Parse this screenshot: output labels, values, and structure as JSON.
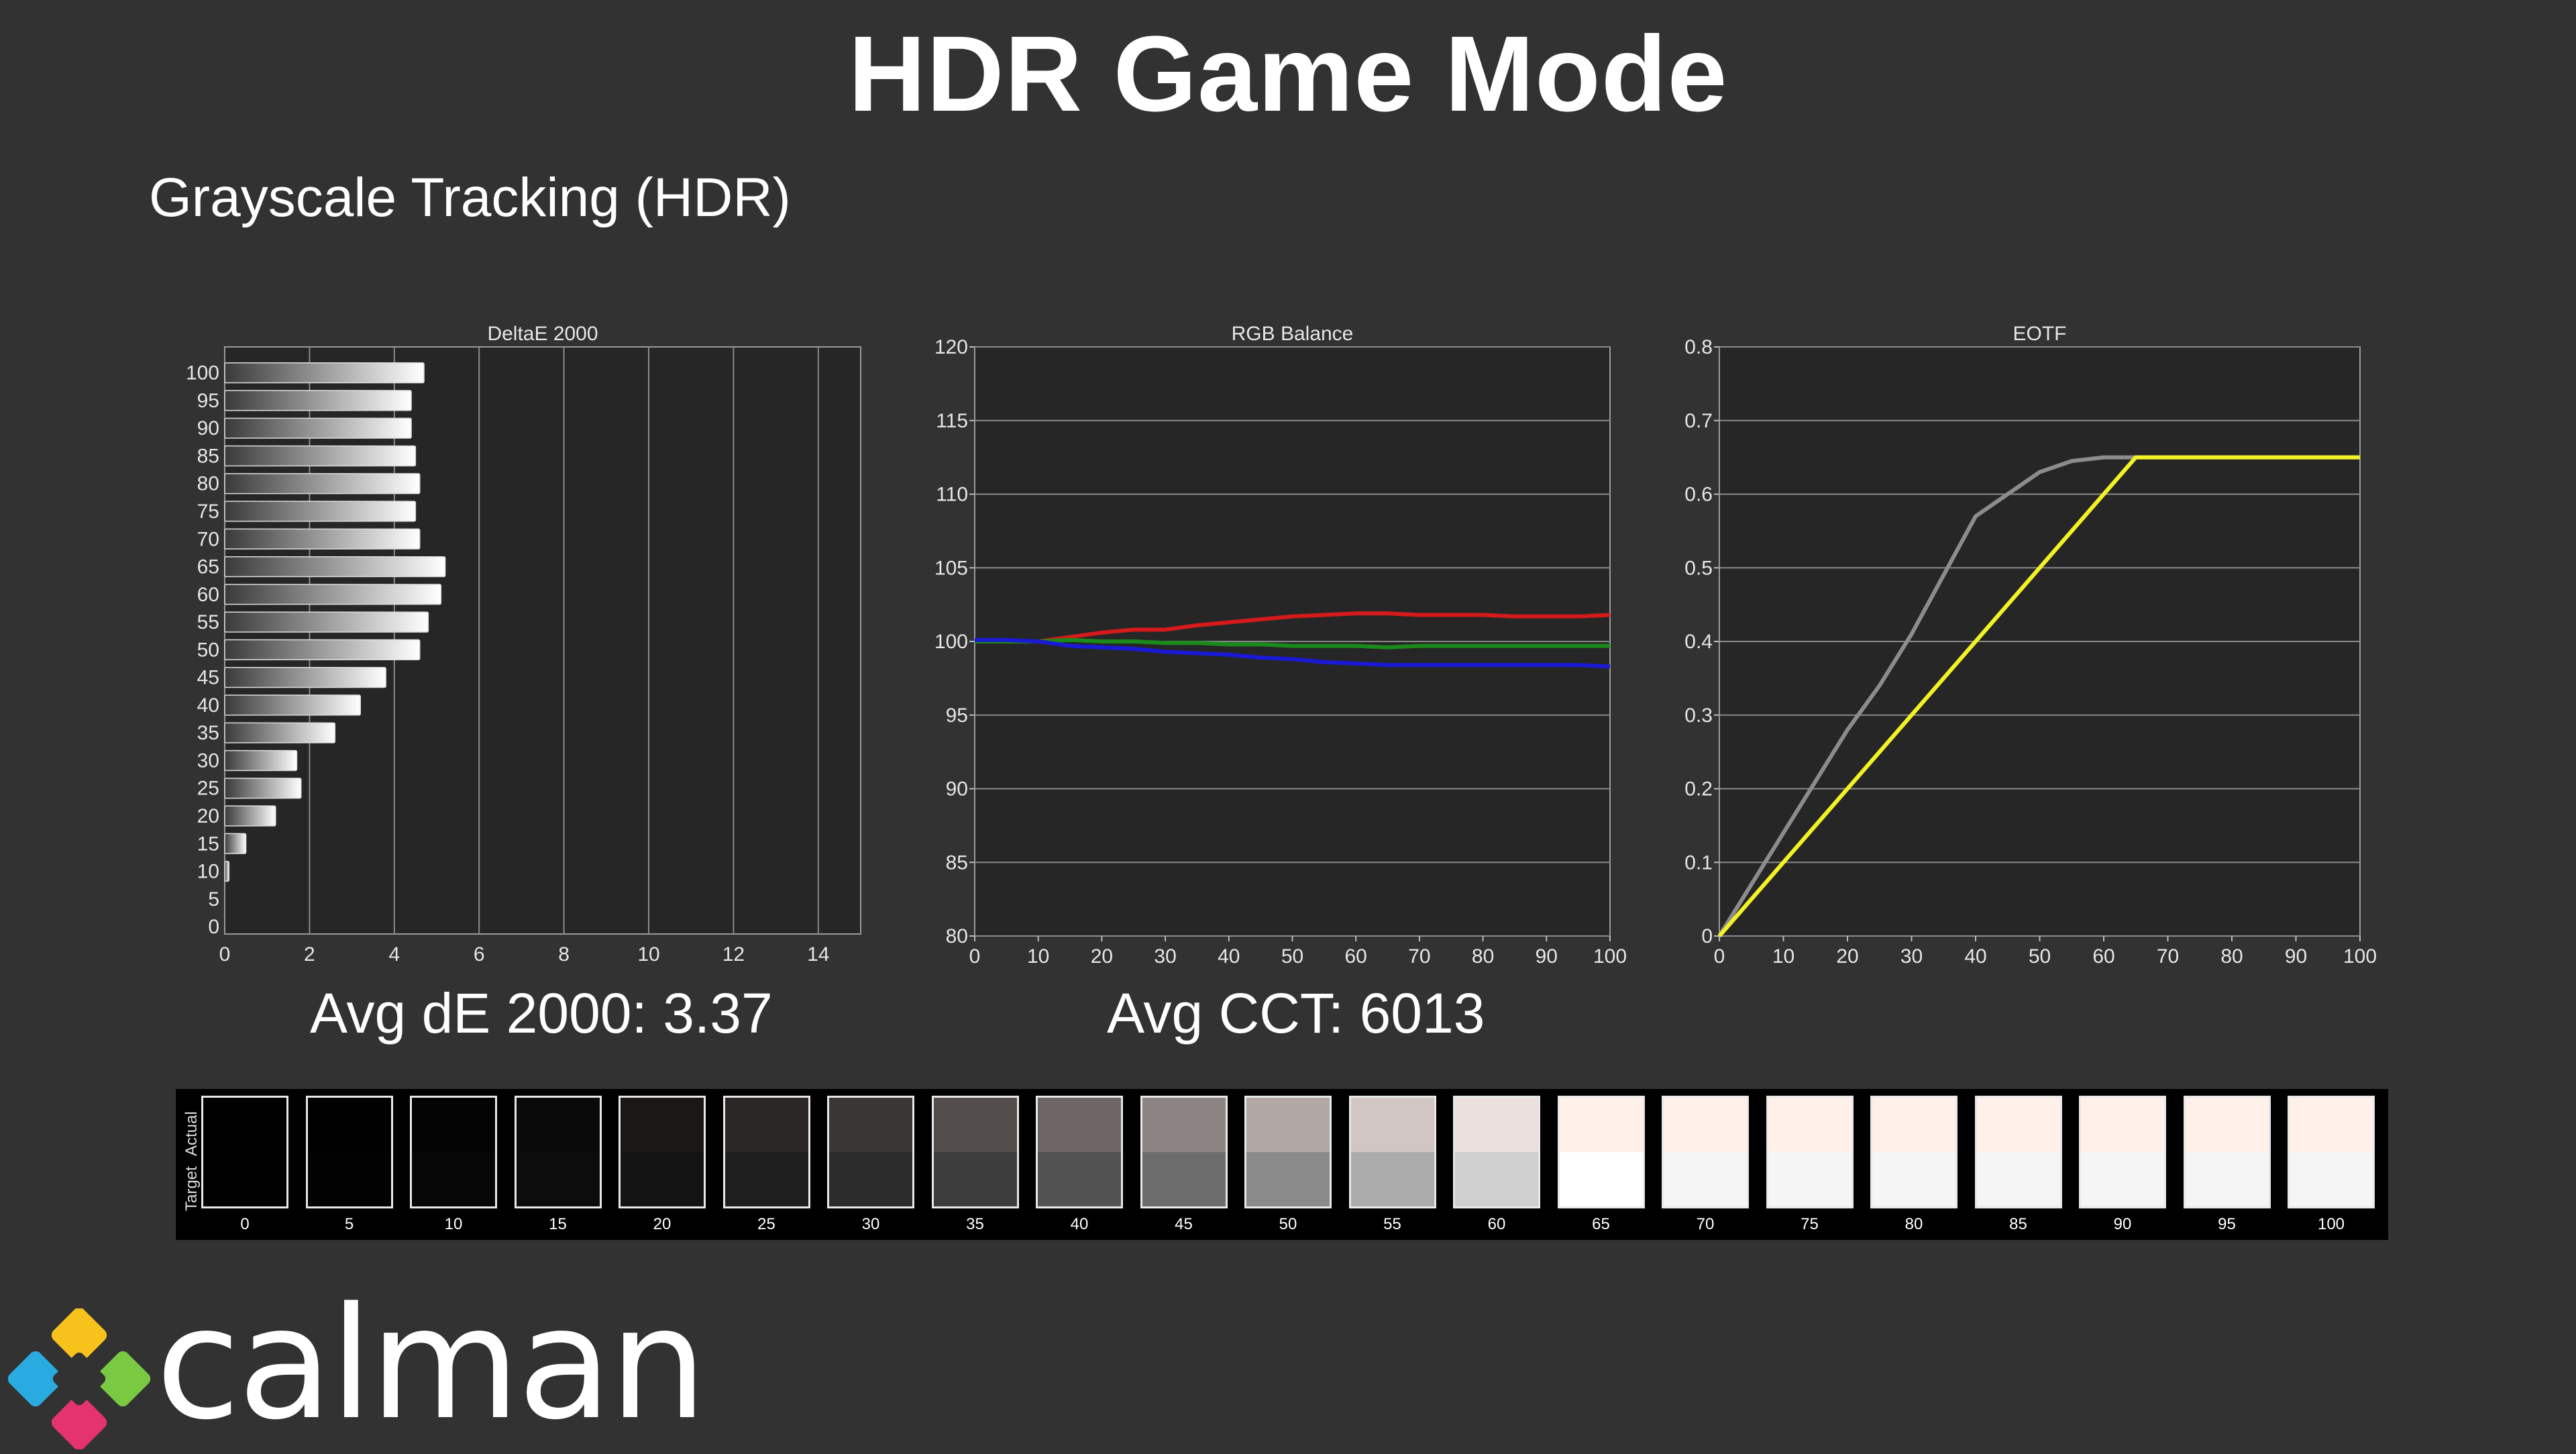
{
  "page_title": "HDR Game Mode",
  "section_title": "Grayscale Tracking (HDR)",
  "summary": {
    "avg_de": "Avg dE 2000: 3.37",
    "avg_cct": "Avg CCT: 6013"
  },
  "strip": {
    "actual_label": "Actual",
    "target_label": "Target",
    "swatches": [
      {
        "label": "0",
        "actual": "#000000",
        "target": "#000000"
      },
      {
        "label": "5",
        "actual": "#010101",
        "target": "#020202"
      },
      {
        "label": "10",
        "actual": "#040404",
        "target": "#060606"
      },
      {
        "label": "15",
        "actual": "#0b0a0a",
        "target": "#0c0c0c"
      },
      {
        "label": "20",
        "actual": "#1a1817",
        "target": "#141414"
      },
      {
        "label": "25",
        "actual": "#2a2726",
        "target": "#1f1f1f"
      },
      {
        "label": "30",
        "actual": "#3a3634",
        "target": "#2c2c2c"
      },
      {
        "label": "35",
        "actual": "#534d4b",
        "target": "#3d3d3d"
      },
      {
        "label": "40",
        "actual": "#6e6664",
        "target": "#525252"
      },
      {
        "label": "45",
        "actual": "#8c8482",
        "target": "#6c6c6c"
      },
      {
        "label": "50",
        "actual": "#b1a8a6",
        "target": "#8a8a8a"
      },
      {
        "label": "55",
        "actual": "#d1c6c4",
        "target": "#ababab"
      },
      {
        "label": "60",
        "actual": "#ebe0dd",
        "target": "#cfcfcf"
      },
      {
        "label": "65",
        "actual": "#fff1ea",
        "target": "#ffffff"
      },
      {
        "label": "70",
        "actual": "#fff1ea",
        "target": "#f5f5f5"
      },
      {
        "label": "75",
        "actual": "#fff1ea",
        "target": "#f5f5f5"
      },
      {
        "label": "80",
        "actual": "#fff1ea",
        "target": "#f5f5f5"
      },
      {
        "label": "85",
        "actual": "#fff1ea",
        "target": "#f5f5f5"
      },
      {
        "label": "90",
        "actual": "#fff1ea",
        "target": "#f5f5f5"
      },
      {
        "label": "95",
        "actual": "#fff1ea",
        "target": "#f5f5f5"
      },
      {
        "label": "100",
        "actual": "#fff1ea",
        "target": "#f5f5f5"
      }
    ]
  },
  "logo": {
    "text": "calman"
  },
  "chart_data": [
    {
      "type": "bar",
      "title": "DeltaE 2000",
      "orientation": "horizontal",
      "categories": [
        "100",
        "95",
        "90",
        "85",
        "80",
        "75",
        "70",
        "65",
        "60",
        "55",
        "50",
        "45",
        "40",
        "35",
        "30",
        "25",
        "20",
        "15",
        "10",
        "5",
        "0"
      ],
      "values": [
        4.7,
        4.4,
        4.4,
        4.5,
        4.6,
        4.5,
        4.6,
        5.2,
        5.1,
        4.8,
        4.6,
        3.8,
        3.2,
        2.6,
        1.7,
        1.8,
        1.2,
        0.5,
        0.1,
        0.0,
        0.0
      ],
      "xlim": [
        0,
        15
      ],
      "xticks": [
        "0",
        "2",
        "4",
        "6",
        "8",
        "10",
        "12",
        "14"
      ],
      "grid": true
    },
    {
      "type": "line",
      "title": "RGB Balance",
      "x": [
        0,
        5,
        10,
        15,
        20,
        25,
        30,
        35,
        40,
        45,
        50,
        55,
        60,
        65,
        70,
        75,
        80,
        85,
        90,
        95,
        100
      ],
      "series": [
        {
          "color": "#d41a1a",
          "values": [
            100.0,
            100.0,
            100.0,
            100.3,
            100.6,
            100.8,
            100.8,
            101.1,
            101.3,
            101.5,
            101.7,
            101.8,
            101.9,
            101.9,
            101.8,
            101.8,
            101.8,
            101.7,
            101.7,
            101.7,
            101.8
          ]
        },
        {
          "color": "#1a8a1a",
          "values": [
            100.0,
            100.0,
            100.0,
            100.1,
            100.0,
            100.0,
            99.9,
            99.9,
            99.8,
            99.8,
            99.7,
            99.7,
            99.7,
            99.6,
            99.7,
            99.7,
            99.7,
            99.7,
            99.7,
            99.7,
            99.7
          ]
        },
        {
          "color": "#1a1ad4",
          "values": [
            100.1,
            100.1,
            100.0,
            99.7,
            99.6,
            99.5,
            99.3,
            99.2,
            99.1,
            98.9,
            98.8,
            98.6,
            98.5,
            98.4,
            98.4,
            98.4,
            98.4,
            98.4,
            98.4,
            98.4,
            98.3
          ]
        }
      ],
      "xlim": [
        0,
        100
      ],
      "ylim": [
        80,
        120
      ],
      "xticks": [
        "0",
        "10",
        "20",
        "30",
        "40",
        "50",
        "60",
        "70",
        "80",
        "90",
        "100"
      ],
      "yticks": [
        "80",
        "85",
        "90",
        "95",
        "100",
        "105",
        "110",
        "115",
        "120"
      ],
      "grid": true
    },
    {
      "type": "line",
      "title": "EOTF",
      "x": [
        0,
        5,
        10,
        15,
        20,
        25,
        30,
        35,
        40,
        45,
        50,
        55,
        60,
        65,
        70,
        75,
        80,
        85,
        90,
        95,
        100
      ],
      "series": [
        {
          "color": "#8c8c8c",
          "values": [
            0.0,
            0.07,
            0.14,
            0.21,
            0.28,
            0.34,
            0.41,
            0.49,
            0.57,
            0.6,
            0.63,
            0.645,
            0.65,
            0.65,
            0.65,
            0.65,
            0.65,
            0.65,
            0.65,
            0.65,
            0.65
          ]
        },
        {
          "color": "#f2f226",
          "values": [
            0.0,
            0.05,
            0.1,
            0.15,
            0.2,
            0.25,
            0.3,
            0.35,
            0.4,
            0.45,
            0.5,
            0.55,
            0.6,
            0.65,
            0.65,
            0.65,
            0.65,
            0.65,
            0.65,
            0.65,
            0.65
          ]
        }
      ],
      "xlim": [
        0,
        100
      ],
      "ylim": [
        0,
        0.8
      ],
      "xticks": [
        "0",
        "10",
        "20",
        "30",
        "40",
        "50",
        "60",
        "70",
        "80",
        "90",
        "100"
      ],
      "yticks": [
        "0",
        "0.1",
        "0.2",
        "0.3",
        "0.4",
        "0.5",
        "0.6",
        "0.7",
        "0.8"
      ],
      "grid": true
    }
  ]
}
